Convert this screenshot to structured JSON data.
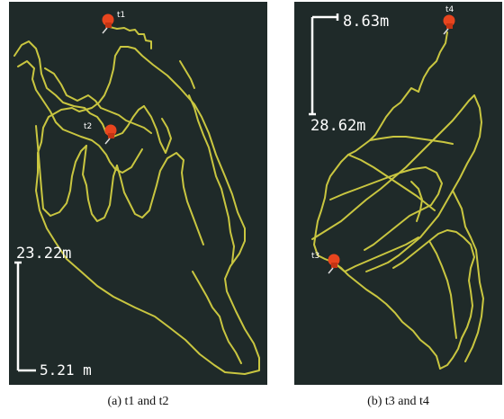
{
  "panels": [
    {
      "caption": "(a) t1 and t2",
      "markers": [
        "t1",
        "t2"
      ],
      "scale": {
        "vertical": "23.22m",
        "horizontal": "5.21 m"
      }
    },
    {
      "caption": "(b) t3 and t4",
      "markers": [
        "t4",
        "t3"
      ],
      "scale": {
        "vertical": "28.62m",
        "horizontal": "8.63m"
      }
    }
  ],
  "colors": {
    "background": "#1f2a29",
    "track": "#c9c640",
    "pin": "#e8451e",
    "scale_bar": "#ffffff"
  },
  "icons": [
    "pushpin-icon"
  ]
}
